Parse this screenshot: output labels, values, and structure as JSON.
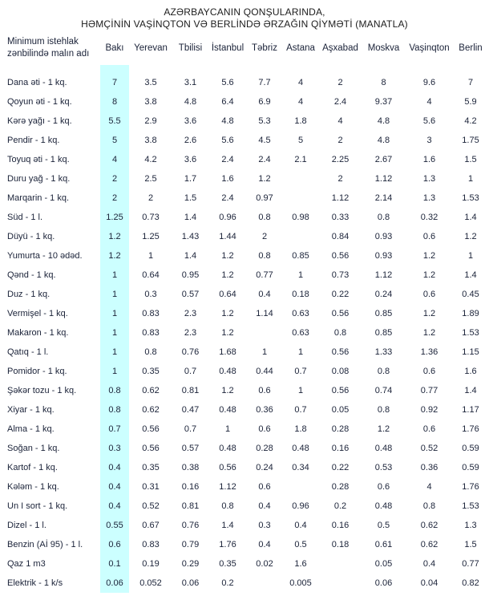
{
  "title": {
    "line1": "AZƏRBAYCANIN QONŞULARINDA,",
    "line2": "HƏMÇİNİN VAŞİNQTON VƏ BERLİNDƏ ƏRZAĞIN QİYMƏTİ (MANATLA)"
  },
  "colors": {
    "highlight_column_bg": "#CCFFFF",
    "text": "#1a2238"
  },
  "chart_data": {
    "type": "table",
    "title": "AZƏRBAYCANIN QONŞULARINDA, HƏMÇİNİN VAŞİNQTON VƏ BERLİNDƏ ƏRZAĞIN QİYMƏTİ (MANATLA)",
    "row_header": "Minimum istehlak zənbilində malın adı",
    "highlighted_column": "Bakı",
    "columns": [
      "Bakı",
      "Yerevan",
      "Tbilisi",
      "İstanbul",
      "Təbriz",
      "Astana",
      "Aşxabad",
      "Moskva",
      "Vaşinqton",
      "Berlin"
    ],
    "rows": [
      {
        "label": "Dana əti - 1 kq.",
        "values": [
          "7",
          "3.5",
          "3.1",
          "5.6",
          "7.7",
          "4",
          "2",
          "8",
          "9.6",
          "7"
        ]
      },
      {
        "label": "Qoyun əti - 1 kq.",
        "values": [
          "8",
          "3.8",
          "4.8",
          "6.4",
          "6.9",
          "4",
          "2.4",
          "9.37",
          "4",
          "5.9"
        ]
      },
      {
        "label": "Kərə yağı - 1 kq.",
        "values": [
          "5.5",
          "2.9",
          "3.6",
          "4.8",
          "5.3",
          "1.8",
          "4",
          "4.8",
          "5.6",
          "4.2"
        ]
      },
      {
        "label": "Pendir - 1 kq.",
        "values": [
          "5",
          "3.8",
          "2.6",
          "5.6",
          "4.5",
          "5",
          "2",
          "4.8",
          "3",
          "1.75"
        ]
      },
      {
        "label": "Toyuq əti - 1 kq.",
        "values": [
          "4",
          "4.2",
          "3.6",
          "2.4",
          "2.4",
          "2.1",
          "2.25",
          "2.67",
          "1.6",
          "1.5"
        ]
      },
      {
        "label": "Duru yağ - 1 kq.",
        "values": [
          "2",
          "2.5",
          "1.7",
          "1.6",
          "1.2",
          "",
          "2",
          "1.12",
          "1.3",
          "1"
        ]
      },
      {
        "label": "Marqarin - 1 kq.",
        "values": [
          "2",
          "2",
          "1.5",
          "2.4",
          "0.97",
          "",
          "1.12",
          "2.14",
          "1.3",
          "1.53"
        ]
      },
      {
        "label": "Süd - 1 l.",
        "values": [
          "1.25",
          "0.73",
          "1.4",
          "0.96",
          "0.8",
          "0.98",
          "0.33",
          "0.8",
          "0.32",
          "1.4"
        ]
      },
      {
        "label": "Düyü - 1 kq.",
        "values": [
          "1.2",
          "1.25",
          "1.43",
          "1.44",
          "2",
          "",
          "0.84",
          "0.93",
          "0.6",
          "1.2"
        ]
      },
      {
        "label": "Yumurta - 10 ədəd.",
        "values": [
          "1.2",
          "1",
          "1.4",
          "1.2",
          "0.8",
          "0.85",
          "0.56",
          "0.93",
          "1.2",
          "1"
        ]
      },
      {
        "label": "Qənd - 1 kq.",
        "values": [
          "1",
          "0.64",
          "0.95",
          "1.2",
          "0.77",
          "1",
          "0.73",
          "1.12",
          "1.2",
          "1.4"
        ]
      },
      {
        "label": "Duz - 1 kq.",
        "values": [
          "1",
          "0.3",
          "0.57",
          "0.64",
          "0.4",
          "0.18",
          "0.22",
          "0.24",
          "0.6",
          "0.45"
        ]
      },
      {
        "label": "Vermişel - 1 kq.",
        "values": [
          "1",
          "0.83",
          "2.3",
          "1.2",
          "1.14",
          "0.63",
          "0.56",
          "0.85",
          "1.2",
          "1.89"
        ]
      },
      {
        "label": "Makaron - 1 kq.",
        "values": [
          "1",
          "0.83",
          "2.3",
          "1.2",
          "",
          "0.63",
          "0.8",
          "0.85",
          "1.2",
          "1.53"
        ]
      },
      {
        "label": "Qatıq - 1 l.",
        "values": [
          "1",
          "0.8",
          "0.76",
          "1.68",
          "1",
          "1",
          "0.56",
          "1.33",
          "1.36",
          "1.15"
        ]
      },
      {
        "label": "Pomidor - 1 kq.",
        "values": [
          "1",
          "0.35",
          "0.7",
          "0.48",
          "0.44",
          "0.7",
          "0.08",
          "0.8",
          "0.6",
          "1.6"
        ]
      },
      {
        "label": "Şəkər tozu - 1 kq.",
        "values": [
          "0.8",
          "0.62",
          "0.81",
          "1.2",
          "0.6",
          "1",
          "0.56",
          "0.74",
          "0.77",
          "1.4"
        ]
      },
      {
        "label": "Xiyar - 1 kq.",
        "values": [
          "0.8",
          "0.62",
          "0.47",
          "0.48",
          "0.36",
          "0.7",
          "0.05",
          "0.8",
          "0.92",
          "1.17"
        ]
      },
      {
        "label": "Alma - 1 kq.",
        "values": [
          "0.7",
          "0.56",
          "0.7",
          "1",
          "0.6",
          "1.8",
          "0.28",
          "1.2",
          "0.6",
          "1.76"
        ]
      },
      {
        "label": "Soğan - 1 kq.",
        "values": [
          "0.3",
          "0.56",
          "0.57",
          "0.48",
          "0.28",
          "0.48",
          "0.16",
          "0.48",
          "0.52",
          "0.59"
        ]
      },
      {
        "label": "Kartof - 1 kq.",
        "values": [
          "0.4",
          "0.35",
          "0.38",
          "0.56",
          "0.24",
          "0.34",
          "0.22",
          "0.53",
          "0.36",
          "0.59"
        ]
      },
      {
        "label": "Kələm - 1 kq.",
        "values": [
          "0.4",
          "0.31",
          "0.16",
          "1.12",
          "0.6",
          "",
          "0.28",
          "0.6",
          "4",
          "1.76"
        ]
      },
      {
        "label": "Un I sort - 1 kq.",
        "values": [
          "0.4",
          "0.52",
          "0.81",
          "0.8",
          "0.4",
          "0.96",
          "0.2",
          "0.48",
          "0.8",
          "1.53"
        ]
      },
      {
        "label": "Dizel - 1 l.",
        "values": [
          "0.55",
          "0.67",
          "0.76",
          "1.4",
          "0.3",
          "0.4",
          "0.16",
          "0.5",
          "0.62",
          "1.3"
        ]
      },
      {
        "label": "Benzin (Aİ 95) - 1 l.",
        "values": [
          "0.6",
          "0.83",
          "0.79",
          "1.76",
          "0.4",
          "0.5",
          "0.18",
          "0.61",
          "0.62",
          "1.5"
        ]
      },
      {
        "label": "Qaz 1 m3",
        "values": [
          "0.1",
          "0.19",
          "0.29",
          "0.35",
          "0.02",
          "1.6",
          "",
          "0.05",
          "0.4",
          "0.77"
        ]
      },
      {
        "label": "Elektrik - 1 k/s",
        "values": [
          "0.06",
          "0.052",
          "0.06",
          "0.2",
          "",
          "0.005",
          "",
          "0.06",
          "0.04",
          "0.82"
        ]
      }
    ]
  }
}
